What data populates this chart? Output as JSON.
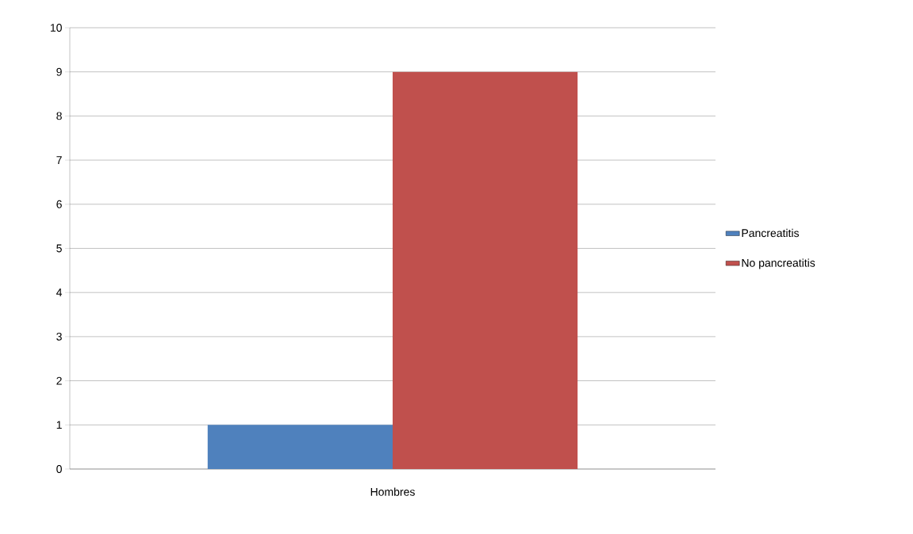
{
  "chart_data": {
    "type": "bar",
    "categories": [
      "Hombres"
    ],
    "series": [
      {
        "name": "Pancreatitis",
        "color": "#4f81bd",
        "values": [
          1
        ]
      },
      {
        "name": "No pancreatitis",
        "color": "#c0504d",
        "values": [
          9
        ]
      }
    ],
    "ylim": [
      0,
      10
    ],
    "yticks": [
      0,
      1,
      2,
      3,
      4,
      5,
      6,
      7,
      8,
      9,
      10
    ],
    "grid": "y",
    "legend": "right"
  }
}
